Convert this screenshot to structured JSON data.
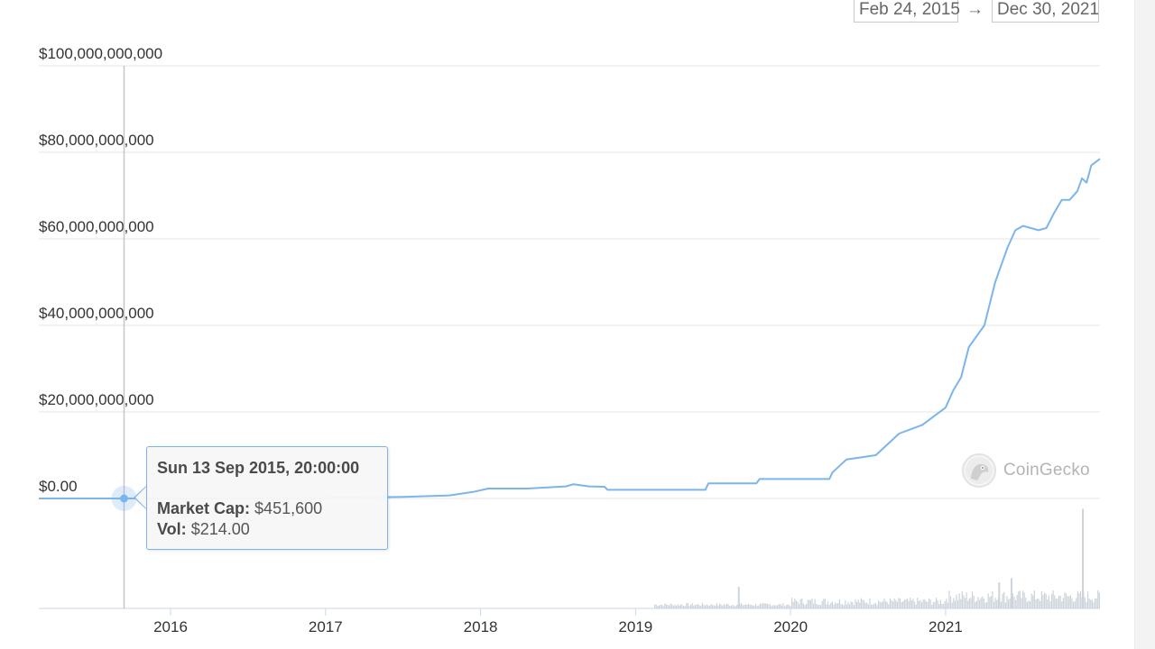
{
  "date_range": {
    "from": "Feb 24, 2015",
    "arrow": "→",
    "to": "Dec 30, 2021"
  },
  "watermark": {
    "text": "CoinGecko",
    "icon": "gecko-logo-icon"
  },
  "tooltip": {
    "date": "Sun 13 Sep 2015, 20:00:00",
    "market_cap_label": "Market Cap:",
    "market_cap_value": "$451,600",
    "vol_label": "Vol:",
    "vol_value": "$214.00"
  },
  "colors": {
    "line": "#7cb5ec",
    "grid": "#e6e6e6",
    "volume": "#cdd3da",
    "crosshair": "#c0c6cc"
  },
  "chart_data": {
    "type": "line",
    "title": "",
    "xlabel": "",
    "ylabel": "",
    "y_ticks": [
      {
        "value": 0,
        "label": "$0.00"
      },
      {
        "value": 20000000000,
        "label": "$20,000,000,000"
      },
      {
        "value": 40000000000,
        "label": "$40,000,000,000"
      },
      {
        "value": 60000000000,
        "label": "$60,000,000,000"
      },
      {
        "value": 80000000000,
        "label": "$80,000,000,000"
      },
      {
        "value": 100000000000,
        "label": "$100,000,000,000"
      }
    ],
    "x_ticks": [
      {
        "value": 2016,
        "label": "2016"
      },
      {
        "value": 2017,
        "label": "2017"
      },
      {
        "value": 2018,
        "label": "2018"
      },
      {
        "value": 2019,
        "label": "2019"
      },
      {
        "value": 2020,
        "label": "2020"
      },
      {
        "value": 2021,
        "label": "2021"
      }
    ],
    "xlim": [
      2015.15,
      2021.996
    ],
    "ylim": [
      0,
      100000000000
    ],
    "grid": true,
    "series": [
      {
        "values_unit": "USD market cap",
        "points": [
          [
            2015.15,
            0
          ],
          [
            2015.7,
            451600
          ],
          [
            2016.0,
            5000000
          ],
          [
            2016.5,
            60000000
          ],
          [
            2017.0,
            150000000
          ],
          [
            2017.5,
            350000000
          ],
          [
            2017.8,
            700000000
          ],
          [
            2017.95,
            1500000000
          ],
          [
            2018.05,
            2300000000
          ],
          [
            2018.3,
            2300000000
          ],
          [
            2018.55,
            2800000000
          ],
          [
            2018.6,
            3300000000
          ],
          [
            2018.7,
            2800000000
          ],
          [
            2018.8,
            2700000000
          ],
          [
            2018.82,
            2000000000
          ],
          [
            2019.3,
            2000000000
          ],
          [
            2019.45,
            2000000000
          ],
          [
            2019.47,
            3500000000
          ],
          [
            2019.7,
            3500000000
          ],
          [
            2019.78,
            3500000000
          ],
          [
            2019.8,
            4500000000
          ],
          [
            2020.25,
            4500000000
          ],
          [
            2020.27,
            6000000000
          ],
          [
            2020.36,
            9000000000
          ],
          [
            2020.55,
            10000000000
          ],
          [
            2020.7,
            15000000000
          ],
          [
            2020.85,
            17000000000
          ],
          [
            2021.0,
            21000000000
          ],
          [
            2021.05,
            25000000000
          ],
          [
            2021.1,
            28000000000
          ],
          [
            2021.15,
            35000000000
          ],
          [
            2021.25,
            40000000000
          ],
          [
            2021.32,
            50000000000
          ],
          [
            2021.4,
            58000000000
          ],
          [
            2021.45,
            62000000000
          ],
          [
            2021.5,
            63000000000
          ],
          [
            2021.6,
            62000000000
          ],
          [
            2021.65,
            62500000000
          ],
          [
            2021.7,
            66000000000
          ],
          [
            2021.75,
            69000000000
          ],
          [
            2021.8,
            69000000000
          ],
          [
            2021.85,
            71000000000
          ],
          [
            2021.88,
            74000000000
          ],
          [
            2021.91,
            73000000000
          ],
          [
            2021.94,
            77000000000
          ],
          [
            2021.996,
            78500000000
          ]
        ]
      }
    ],
    "volume_series": {
      "note_unit": "relative volume (0-1)",
      "spike_dates": [
        2019.66,
        2021.34,
        2021.42,
        2021.88
      ],
      "spike_levels": [
        0.2,
        0.24,
        0.28,
        0.92
      ]
    },
    "crosshair_x": 2015.7
  }
}
